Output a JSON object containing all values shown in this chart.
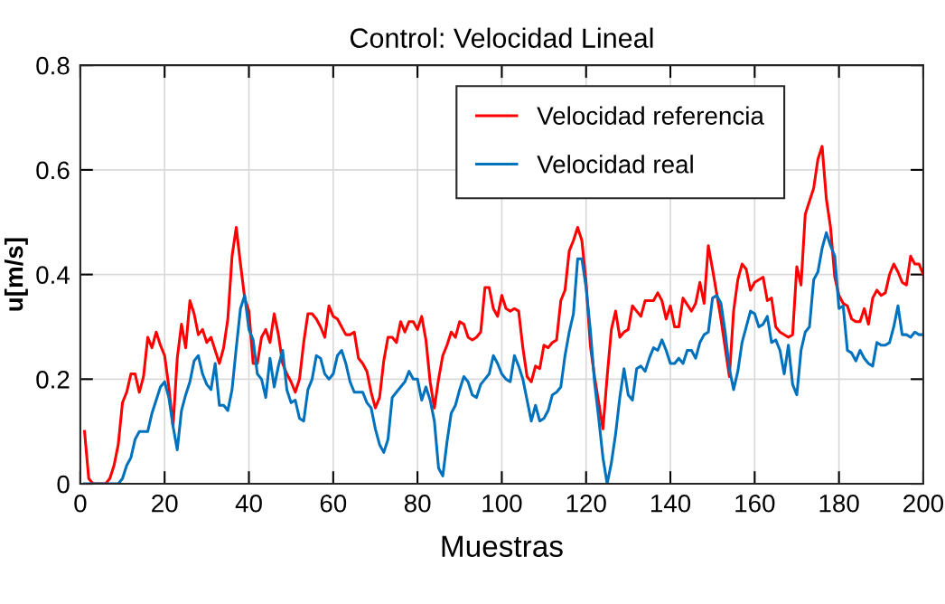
{
  "chart_data": {
    "type": "line",
    "title": "Control: Velocidad Lineal",
    "xlabel": "Muestras",
    "ylabel": "u[m/s]",
    "xlim": [
      0,
      200
    ],
    "ylim": [
      0,
      0.8
    ],
    "xticks": [
      0,
      20,
      40,
      60,
      80,
      100,
      120,
      140,
      160,
      180,
      200
    ],
    "yticks": [
      0,
      0.2,
      0.4,
      0.6,
      0.8
    ],
    "grid": true,
    "legend": "top right",
    "line_style": "solid",
    "series": [
      {
        "name": "Velocidad referencia",
        "color": "#ff0000",
        "x": [
          1,
          2,
          3,
          6,
          7,
          8,
          9,
          10,
          11,
          12,
          13,
          14,
          15,
          16,
          17,
          18,
          19,
          20,
          21,
          22,
          23,
          24,
          25,
          26,
          27,
          28,
          29,
          30,
          31,
          32,
          33,
          34,
          35,
          36,
          37,
          38,
          39,
          40,
          41,
          42,
          43,
          44,
          45,
          46,
          47,
          48,
          49,
          50,
          51,
          52,
          53,
          54,
          55,
          56,
          57,
          58,
          59,
          60,
          61,
          62,
          63,
          64,
          65,
          66,
          67,
          68,
          69,
          70,
          71,
          72,
          73,
          74,
          75,
          76,
          77,
          78,
          79,
          80,
          81,
          82,
          83,
          84,
          85,
          86,
          87,
          88,
          89,
          90,
          91,
          92,
          93,
          94,
          95,
          96,
          97,
          98,
          99,
          100,
          101,
          102,
          103,
          104,
          105,
          106,
          107,
          108,
          109,
          110,
          111,
          112,
          113,
          114,
          115,
          116,
          117,
          118,
          119,
          120,
          121,
          122,
          123,
          124,
          125,
          126,
          127,
          128,
          129,
          130,
          131,
          132,
          133,
          134,
          136,
          137,
          138,
          139,
          140,
          141,
          142,
          143,
          145,
          146,
          147,
          148,
          149,
          150,
          152,
          154,
          155,
          156,
          157,
          158,
          159,
          160,
          162,
          163,
          164,
          165,
          166,
          168,
          169,
          170,
          171,
          172,
          174,
          175,
          176,
          177,
          178,
          179,
          180,
          181,
          182,
          183,
          184,
          185,
          186,
          187,
          188,
          189,
          190,
          191,
          192,
          193,
          194,
          195,
          196,
          197,
          198,
          199,
          200
        ],
        "values": [
          0.1,
          0.01,
          0,
          0,
          0.01,
          0.035,
          0.075,
          0.155,
          0.175,
          0.21,
          0.21,
          0.175,
          0.205,
          0.28,
          0.26,
          0.29,
          0.265,
          0.245,
          0.185,
          0.11,
          0.24,
          0.305,
          0.26,
          0.35,
          0.325,
          0.285,
          0.295,
          0.27,
          0.28,
          0.255,
          0.23,
          0.26,
          0.315,
          0.435,
          0.49,
          0.42,
          0.355,
          0.33,
          0.23,
          0.23,
          0.28,
          0.295,
          0.27,
          0.325,
          0.285,
          0.23,
          0.21,
          0.195,
          0.175,
          0.2,
          0.27,
          0.325,
          0.325,
          0.315,
          0.3,
          0.28,
          0.34,
          0.32,
          0.315,
          0.3,
          0.285,
          0.285,
          0.29,
          0.24,
          0.23,
          0.215,
          0.175,
          0.145,
          0.165,
          0.235,
          0.28,
          0.28,
          0.27,
          0.31,
          0.29,
          0.31,
          0.31,
          0.295,
          0.32,
          0.275,
          0.195,
          0.145,
          0.2,
          0.245,
          0.265,
          0.29,
          0.28,
          0.31,
          0.305,
          0.28,
          0.275,
          0.28,
          0.29,
          0.375,
          0.375,
          0.335,
          0.32,
          0.36,
          0.335,
          0.33,
          0.335,
          0.33,
          0.26,
          0.205,
          0.195,
          0.225,
          0.22,
          0.265,
          0.26,
          0.27,
          0.275,
          0.35,
          0.37,
          0.445,
          0.465,
          0.49,
          0.465,
          0.385,
          0.265,
          0.205,
          0.155,
          0.105,
          0.205,
          0.295,
          0.33,
          0.28,
          0.29,
          0.295,
          0.34,
          0.33,
          0.32,
          0.35,
          0.35,
          0.365,
          0.35,
          0.315,
          0.34,
          0.3,
          0.3,
          0.355,
          0.33,
          0.345,
          0.385,
          0.345,
          0.455,
          0.41,
          0.315,
          0.205,
          0.33,
          0.39,
          0.42,
          0.41,
          0.37,
          0.385,
          0.395,
          0.35,
          0.355,
          0.3,
          0.29,
          0.28,
          0.285,
          0.415,
          0.38,
          0.515,
          0.565,
          0.62,
          0.645,
          0.545,
          0.49,
          0.395,
          0.36,
          0.345,
          0.34,
          0.315,
          0.31,
          0.31,
          0.335,
          0.305,
          0.355,
          0.37,
          0.36,
          0.365,
          0.4,
          0.42,
          0.405,
          0.385,
          0.38,
          0.435,
          0.42,
          0.42,
          0.4
        ]
      },
      {
        "name": "Velocidad real",
        "color": "#0072bd",
        "x": [
          1,
          9,
          10,
          11,
          12,
          13,
          14,
          16,
          17,
          18,
          19,
          20,
          21,
          22,
          23,
          24,
          25,
          26,
          27,
          28,
          29,
          30,
          31,
          32,
          33,
          34,
          35,
          36,
          37,
          38,
          39,
          40,
          41,
          42,
          43,
          44,
          45,
          46,
          47,
          48,
          49,
          50,
          51,
          52,
          53,
          54,
          55,
          56,
          57,
          58,
          59,
          60,
          61,
          62,
          63,
          64,
          65,
          67,
          68,
          69,
          70,
          71,
          72,
          73,
          74,
          75,
          76,
          77,
          78,
          79,
          80,
          81,
          82,
          83,
          84,
          85,
          86,
          87,
          88,
          89,
          90,
          91,
          92,
          93,
          94,
          95,
          96,
          97,
          98,
          99,
          100,
          101,
          102,
          103,
          104,
          105,
          106,
          107,
          108,
          109,
          110,
          111,
          112,
          113,
          114,
          115,
          116,
          117,
          118,
          119,
          120,
          121,
          122,
          123,
          124,
          125,
          126,
          127,
          128,
          129,
          130,
          131,
          132,
          133,
          134,
          135,
          136,
          137,
          138,
          139,
          140,
          141,
          142,
          143,
          144,
          145,
          146,
          147,
          148,
          149,
          150,
          151,
          152,
          153,
          154,
          155,
          156,
          157,
          159,
          160,
          161,
          162,
          163,
          164,
          165,
          166,
          167,
          168,
          169,
          170,
          171,
          172,
          173,
          174,
          175,
          176,
          177,
          178,
          179,
          180,
          181,
          182,
          183,
          184,
          185,
          186,
          187,
          188,
          189,
          190,
          191,
          192,
          193,
          194,
          195,
          196,
          197,
          198,
          199,
          200
        ],
        "values": [
          0,
          0,
          0.01,
          0.035,
          0.05,
          0.085,
          0.1,
          0.1,
          0.135,
          0.16,
          0.185,
          0.195,
          0.165,
          0.11,
          0.065,
          0.14,
          0.17,
          0.195,
          0.235,
          0.245,
          0.21,
          0.19,
          0.18,
          0.23,
          0.15,
          0.15,
          0.14,
          0.18,
          0.26,
          0.335,
          0.36,
          0.295,
          0.275,
          0.21,
          0.2,
          0.165,
          0.24,
          0.185,
          0.225,
          0.255,
          0.18,
          0.155,
          0.16,
          0.125,
          0.12,
          0.18,
          0.2,
          0.245,
          0.24,
          0.21,
          0.2,
          0.21,
          0.245,
          0.255,
          0.23,
          0.195,
          0.175,
          0.175,
          0.155,
          0.145,
          0.105,
          0.075,
          0.06,
          0.085,
          0.165,
          0.175,
          0.185,
          0.195,
          0.215,
          0.2,
          0.2,
          0.16,
          0.185,
          0.16,
          0.12,
          0.03,
          0.015,
          0.08,
          0.135,
          0.15,
          0.18,
          0.205,
          0.195,
          0.17,
          0.165,
          0.19,
          0.2,
          0.21,
          0.245,
          0.23,
          0.21,
          0.2,
          0.195,
          0.245,
          0.225,
          0.2,
          0.16,
          0.12,
          0.15,
          0.12,
          0.125,
          0.14,
          0.17,
          0.175,
          0.185,
          0.245,
          0.29,
          0.325,
          0.43,
          0.43,
          0.375,
          0.295,
          0.195,
          0.125,
          0.05,
          0,
          0.04,
          0.095,
          0.165,
          0.22,
          0.17,
          0.16,
          0.22,
          0.225,
          0.215,
          0.24,
          0.26,
          0.255,
          0.275,
          0.255,
          0.23,
          0.23,
          0.24,
          0.23,
          0.255,
          0.255,
          0.24,
          0.27,
          0.285,
          0.29,
          0.355,
          0.36,
          0.345,
          0.29,
          0.22,
          0.18,
          0.215,
          0.27,
          0.33,
          0.325,
          0.3,
          0.305,
          0.32,
          0.27,
          0.275,
          0.255,
          0.21,
          0.265,
          0.19,
          0.17,
          0.255,
          0.29,
          0.3,
          0.39,
          0.405,
          0.45,
          0.48,
          0.455,
          0.435,
          0.335,
          0.34,
          0.255,
          0.25,
          0.235,
          0.255,
          0.24,
          0.23,
          0.225,
          0.27,
          0.265,
          0.265,
          0.27,
          0.3,
          0.34,
          0.285,
          0.285,
          0.28,
          0.29,
          0.285,
          0.285
        ]
      }
    ]
  }
}
